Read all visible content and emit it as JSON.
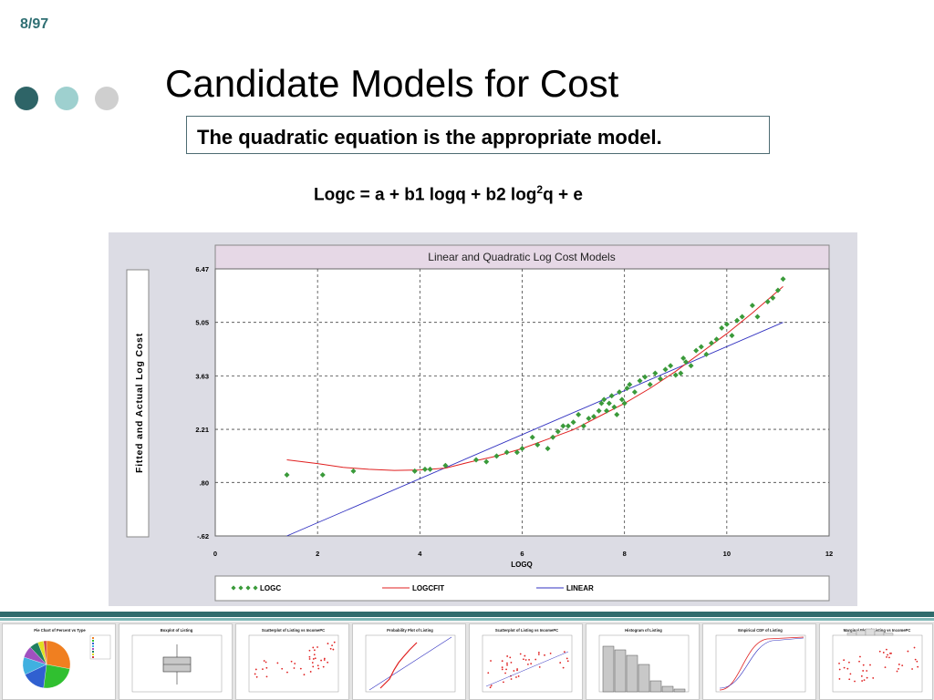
{
  "page_number": "8/97",
  "title": "Candidate Models for Cost",
  "callout": "The quadratic equation is the appropriate model.",
  "equation": {
    "part1": "Logc = a + b1 logq + b2 log",
    "sup": "2",
    "part2": "q + e"
  },
  "colors": {
    "dot1": "#2e6467",
    "dot2": "#9ed0cf",
    "dot3": "#cfcfcf",
    "logc": "#3a9a3a",
    "logcfit": "#e02020",
    "linear": "#3030c0"
  },
  "chart_data": {
    "type": "scatter",
    "title": "Linear and Quadratic Log Cost Models",
    "xlabel": "LOGQ",
    "ylabel": "Fitted and Actual Log Cost",
    "xlim": [
      0,
      12
    ],
    "ylim": [
      -0.62,
      6.47
    ],
    "x_ticks": [
      "0",
      "2",
      "4",
      "6",
      "8",
      "10",
      "12"
    ],
    "y_ticks": [
      "6.47",
      "5.05",
      "3.63",
      "2.21",
      ".80",
      "-.62"
    ],
    "legend_position": "bottom",
    "series": [
      {
        "name": "LOGC",
        "kind": "points",
        "points": [
          [
            1.4,
            1.0
          ],
          [
            2.1,
            1.0
          ],
          [
            2.7,
            1.1
          ],
          [
            3.9,
            1.1
          ],
          [
            4.1,
            1.15
          ],
          [
            4.2,
            1.15
          ],
          [
            4.5,
            1.25
          ],
          [
            5.1,
            1.4
          ],
          [
            5.3,
            1.35
          ],
          [
            5.5,
            1.5
          ],
          [
            5.7,
            1.6
          ],
          [
            5.9,
            1.6
          ],
          [
            6.0,
            1.7
          ],
          [
            6.2,
            2.0
          ],
          [
            6.3,
            1.8
          ],
          [
            6.5,
            1.7
          ],
          [
            6.6,
            2.0
          ],
          [
            6.7,
            2.15
          ],
          [
            6.8,
            2.3
          ],
          [
            6.9,
            2.3
          ],
          [
            7.0,
            2.4
          ],
          [
            7.1,
            2.6
          ],
          [
            7.2,
            2.3
          ],
          [
            7.3,
            2.5
          ],
          [
            7.4,
            2.55
          ],
          [
            7.5,
            2.7
          ],
          [
            7.55,
            2.9
          ],
          [
            7.6,
            3.0
          ],
          [
            7.65,
            2.7
          ],
          [
            7.7,
            2.9
          ],
          [
            7.75,
            3.1
          ],
          [
            7.8,
            2.8
          ],
          [
            7.85,
            2.6
          ],
          [
            7.9,
            3.2
          ],
          [
            7.95,
            3.0
          ],
          [
            8.0,
            2.9
          ],
          [
            8.05,
            3.3
          ],
          [
            8.1,
            3.4
          ],
          [
            8.2,
            3.2
          ],
          [
            8.3,
            3.5
          ],
          [
            8.4,
            3.6
          ],
          [
            8.5,
            3.4
          ],
          [
            8.6,
            3.7
          ],
          [
            8.7,
            3.55
          ],
          [
            8.8,
            3.8
          ],
          [
            8.9,
            3.9
          ],
          [
            9.0,
            3.65
          ],
          [
            9.1,
            3.7
          ],
          [
            9.15,
            4.1
          ],
          [
            9.2,
            4.0
          ],
          [
            9.3,
            3.9
          ],
          [
            9.4,
            4.3
          ],
          [
            9.5,
            4.4
          ],
          [
            9.6,
            4.2
          ],
          [
            9.7,
            4.5
          ],
          [
            9.8,
            4.6
          ],
          [
            9.9,
            4.9
          ],
          [
            10.0,
            5.0
          ],
          [
            10.1,
            4.7
          ],
          [
            10.2,
            5.1
          ],
          [
            10.3,
            5.2
          ],
          [
            10.5,
            5.5
          ],
          [
            10.6,
            5.2
          ],
          [
            10.8,
            5.6
          ],
          [
            10.9,
            5.7
          ],
          [
            11.0,
            5.9
          ],
          [
            11.1,
            6.2
          ]
        ]
      },
      {
        "name": "LOGCFIT",
        "kind": "curve",
        "x": [
          1.4,
          2.0,
          2.5,
          3.0,
          3.5,
          4.0,
          4.5,
          5.0,
          5.5,
          6.0,
          6.5,
          7.0,
          7.5,
          8.0,
          8.5,
          9.0,
          9.5,
          10.0,
          10.5,
          11.1
        ],
        "y": [
          1.4,
          1.3,
          1.2,
          1.15,
          1.12,
          1.13,
          1.18,
          1.35,
          1.5,
          1.7,
          1.95,
          2.2,
          2.55,
          2.9,
          3.3,
          3.75,
          4.25,
          4.75,
          5.3,
          6.0
        ]
      },
      {
        "name": "LINEAR",
        "kind": "line",
        "x": [
          1.4,
          11.1
        ],
        "y": [
          -0.62,
          5.05
        ]
      }
    ]
  },
  "thumbnails": [
    {
      "title": "Pie Chart of Percent vs Type",
      "kind": "pie"
    },
    {
      "title": "Boxplot of Listing",
      "kind": "box"
    },
    {
      "title": "Scatterplot of Listing vs IncomePC",
      "kind": "scatter"
    },
    {
      "title": "Probability Plot of Listing",
      "kind": "prob"
    },
    {
      "title": "Scatterplot of Listing vs IncomePC",
      "kind": "scatter"
    },
    {
      "title": "Histogram of Listing",
      "kind": "hist"
    },
    {
      "title": "Empirical CDF of Listing",
      "kind": "cdf"
    },
    {
      "title": "Marginal Plot of Listing vs IncomePC",
      "kind": "marginal"
    }
  ]
}
